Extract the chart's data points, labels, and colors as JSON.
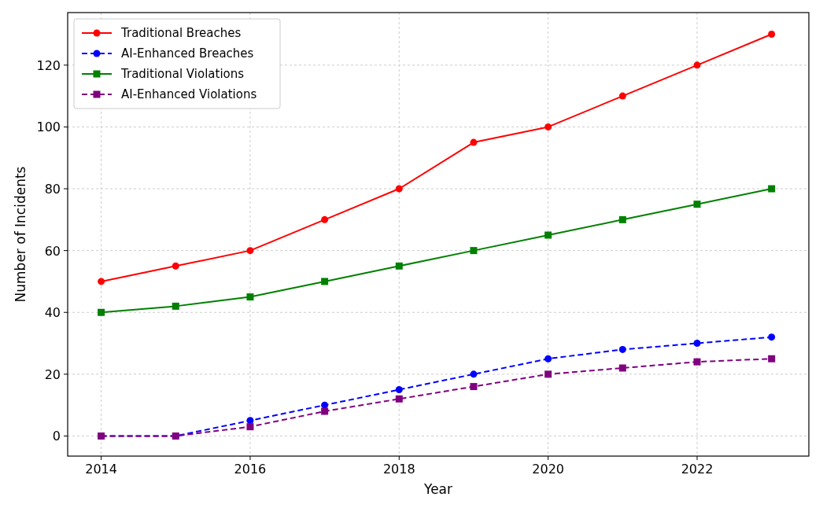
{
  "chart_data": {
    "type": "line",
    "xlabel": "Year",
    "ylabel": "Number of Incidents",
    "x": [
      2014,
      2015,
      2016,
      2017,
      2018,
      2019,
      2020,
      2021,
      2022,
      2023
    ],
    "xlim": [
      2013.55,
      2023.5
    ],
    "xticks": [
      2014,
      2016,
      2018,
      2020,
      2022
    ],
    "ylim": [
      -6.5,
      137
    ],
    "yticks": [
      0,
      20,
      40,
      60,
      80,
      100,
      120
    ],
    "grid": true,
    "legend": "top left",
    "series": [
      {
        "name": "Traditional Breaches",
        "color": "#ff0000",
        "marker": "circle",
        "line_style": "solid",
        "values": [
          50,
          55,
          60,
          70,
          80,
          95,
          100,
          110,
          120,
          130
        ]
      },
      {
        "name": "AI-Enhanced Breaches",
        "color": "#0000ff",
        "marker": "circle",
        "line_style": "dashed",
        "values": [
          0,
          0,
          5,
          10,
          15,
          20,
          25,
          28,
          30,
          32
        ]
      },
      {
        "name": "Traditional Violations",
        "color": "#008000",
        "marker": "square",
        "line_style": "solid",
        "values": [
          40,
          42,
          45,
          50,
          55,
          60,
          65,
          70,
          75,
          80
        ]
      },
      {
        "name": "AI-Enhanced Violations",
        "color": "#800080",
        "marker": "square",
        "line_style": "dashed",
        "values": [
          0,
          0,
          3,
          8,
          12,
          16,
          20,
          22,
          24,
          25
        ]
      }
    ]
  }
}
